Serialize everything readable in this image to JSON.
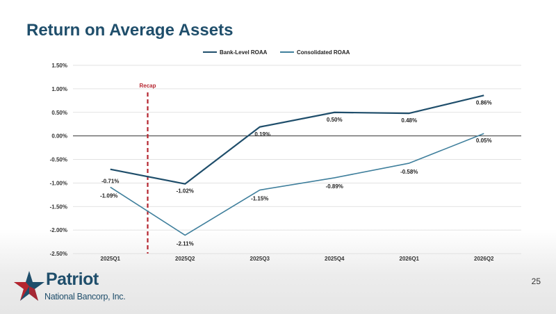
{
  "slide": {
    "title": "Return on Average Assets",
    "page_number": "25"
  },
  "logo": {
    "name": "Patriot",
    "subtitle": "National Bancorp, Inc.",
    "colors": {
      "navy": "#1f4e6b",
      "red": "#b5252f"
    }
  },
  "chart_data": {
    "type": "line",
    "categories": [
      "2025Q1",
      "2025Q2",
      "2025Q3",
      "2025Q4",
      "2026Q1",
      "2026Q2"
    ],
    "series": [
      {
        "name": "Bank-Level ROAA",
        "values": [
          -0.71,
          -1.02,
          0.19,
          0.5,
          0.48,
          0.86
        ],
        "labels": [
          "-0.71%",
          "-1.02%",
          "0.19%",
          "0.50%",
          "0.48%",
          "0.86%"
        ],
        "color": "#1f4e6b"
      },
      {
        "name": "Consolidated ROAA",
        "values": [
          -1.09,
          -2.11,
          -1.15,
          -0.89,
          -0.58,
          0.05
        ],
        "labels": [
          "-1.09%",
          "-2.11%",
          "-1.15%",
          "-0.89%",
          "-0.58%",
          "0.05%"
        ],
        "color": "#3f7f9c"
      }
    ],
    "yticks": [
      "1.50%",
      "1.00%",
      "0.50%",
      "0.00%",
      "-0.50%",
      "-1.00%",
      "-1.50%",
      "-2.00%",
      "-2.50%"
    ],
    "ytick_values": [
      1.5,
      1.0,
      0.5,
      0.0,
      -0.5,
      -1.0,
      -1.5,
      -2.0,
      -2.5
    ],
    "ylim": [
      -2.5,
      1.5
    ],
    "grid": true,
    "legend_position": "top",
    "annotation": {
      "text": "Recap",
      "x_between": [
        "2025Q1",
        "2025Q2"
      ],
      "color": "#b5252f",
      "style": "dashed vertical line"
    },
    "title": "",
    "xlabel": "",
    "ylabel": ""
  }
}
